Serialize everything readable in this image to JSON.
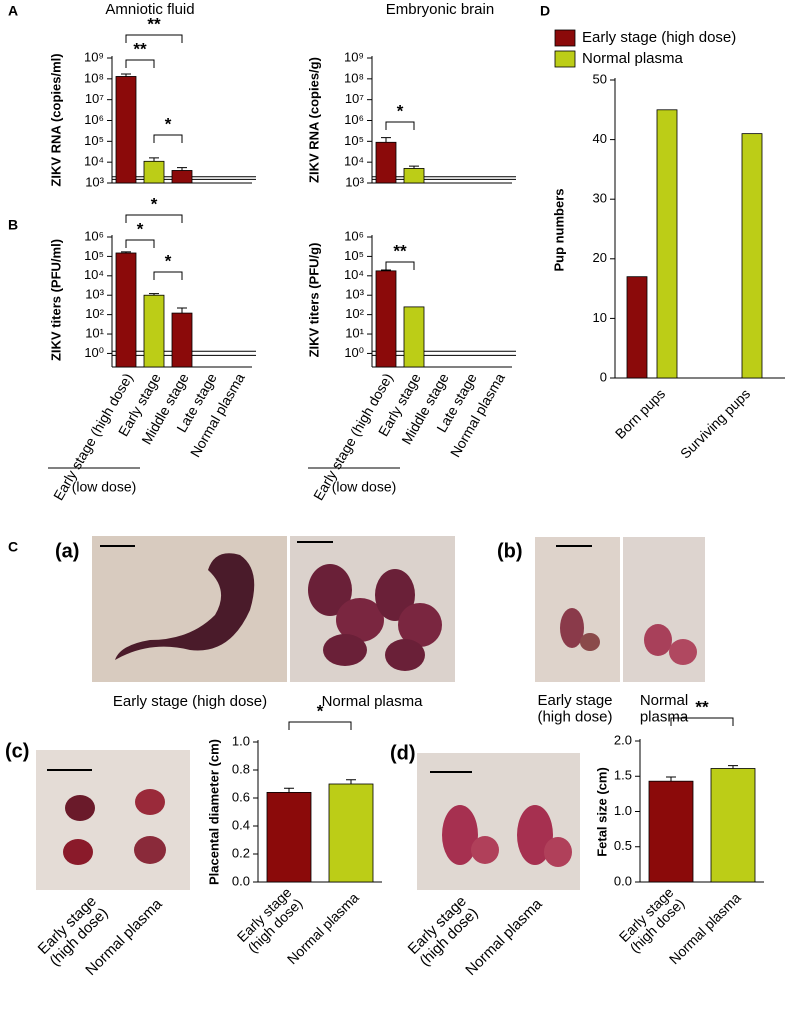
{
  "panel_labels": [
    "A",
    "B",
    "C",
    "D"
  ],
  "chart_data": [
    {
      "type": "bar",
      "title": "Amniotic fluid",
      "y_label": "ZIKV RNA (copies/ml)",
      "log_scale": true,
      "categories": [
        null,
        null,
        null,
        null,
        null
      ],
      "values": [
        130000000,
        11000,
        4000,
        null,
        null
      ],
      "errors": [
        40000000,
        5000,
        1500,
        null,
        null
      ],
      "colors": [
        "#8b0a0a",
        "#bccd17",
        "#8b0a0a",
        null,
        null
      ],
      "ylim": [
        1000,
        1000000000
      ],
      "yticks": [
        {
          "value": 1000,
          "label": "10³"
        },
        {
          "value": 10000,
          "label": "10⁴"
        },
        {
          "value": 100000,
          "label": "10⁵"
        },
        {
          "value": 1000000,
          "label": "10⁶"
        },
        {
          "value": 10000000,
          "label": "10⁷"
        },
        {
          "value": 100000000,
          "label": "10⁸"
        },
        {
          "value": 1000000000,
          "label": "10⁹"
        }
      ],
      "reference_lines": [
        1500,
        2000
      ],
      "significance": [
        {
          "label": "**",
          "pair": [
            0,
            2
          ]
        },
        {
          "label": "**",
          "pair": [
            0,
            1
          ]
        },
        {
          "label": "*",
          "pair": [
            1,
            2
          ]
        }
      ]
    },
    {
      "type": "bar",
      "title": "Embryonic brain",
      "y_label": "ZIKV RNA (copies/g)",
      "log_scale": true,
      "categories": [
        null,
        null,
        null,
        null,
        null
      ],
      "values": [
        90000,
        5000,
        null,
        null,
        null
      ],
      "errors": [
        60000,
        1500,
        null,
        null,
        null
      ],
      "colors": [
        "#8b0a0a",
        "#bccd17",
        null,
        null,
        null
      ],
      "ylim": [
        1000,
        1000000000
      ],
      "yticks": [
        {
          "value": 1000,
          "label": "10³"
        },
        {
          "value": 10000,
          "label": "10⁴"
        },
        {
          "value": 100000,
          "label": "10⁵"
        },
        {
          "value": 1000000,
          "label": "10⁶"
        },
        {
          "value": 10000000,
          "label": "10⁷"
        },
        {
          "value": 100000000,
          "label": "10⁸"
        },
        {
          "value": 1000000000,
          "label": "10⁹"
        }
      ],
      "reference_lines": [
        1500,
        2000
      ],
      "significance": [
        {
          "label": "*",
          "pair": [
            0,
            1
          ]
        }
      ]
    },
    {
      "type": "bar",
      "y_label": "ZIKV titers (PFU/ml)",
      "log_scale": true,
      "categories": [
        "Early stage (high dose)",
        "Early stage",
        "Middle stage",
        "Late stage",
        "Normal plasma"
      ],
      "group_label": "(low dose)",
      "values": [
        150000,
        1000,
        120,
        null,
        null
      ],
      "errors": [
        20000,
        200,
        100,
        null,
        null
      ],
      "colors": [
        "#8b0a0a",
        "#bccd17",
        "#8b0a0a",
        null,
        null
      ],
      "ylim": [
        0.2,
        1000000
      ],
      "yticks": [
        {
          "value": 1,
          "label": "10⁰"
        },
        {
          "value": 10,
          "label": "10¹"
        },
        {
          "value": 100,
          "label": "10²"
        },
        {
          "value": 1000,
          "label": "10³"
        },
        {
          "value": 10000,
          "label": "10⁴"
        },
        {
          "value": 100000,
          "label": "10⁵"
        },
        {
          "value": 1000000,
          "label": "10⁶"
        }
      ],
      "reference_lines": [
        0.8,
        1.3
      ],
      "significance": [
        {
          "label": "*",
          "pair": [
            0,
            2
          ]
        },
        {
          "label": "*",
          "pair": [
            0,
            1
          ]
        },
        {
          "label": "*",
          "pair": [
            1,
            2
          ]
        }
      ]
    },
    {
      "type": "bar",
      "y_label": "ZIKV titers (PFU/g)",
      "log_scale": true,
      "categories": [
        "Early stage (high dose)",
        "Early stage",
        "Middle stage",
        "Late stage",
        "Normal plasma"
      ],
      "group_label": "(low dose)",
      "values": [
        18000,
        250,
        null,
        null,
        null
      ],
      "errors": [
        2000,
        null,
        null,
        null,
        null
      ],
      "colors": [
        "#8b0a0a",
        "#bccd17",
        null,
        null,
        null
      ],
      "ylim": [
        0.2,
        1000000
      ],
      "yticks": [
        {
          "value": 1,
          "label": "10⁰"
        },
        {
          "value": 10,
          "label": "10¹"
        },
        {
          "value": 100,
          "label": "10²"
        },
        {
          "value": 1000,
          "label": "10³"
        },
        {
          "value": 10000,
          "label": "10⁴"
        },
        {
          "value": 100000,
          "label": "10⁵"
        },
        {
          "value": 1000000,
          "label": "10⁶"
        }
      ],
      "reference_lines": [
        0.8,
        1.3
      ],
      "significance": [
        {
          "label": "**",
          "pair": [
            0,
            1
          ]
        }
      ]
    },
    {
      "type": "grouped_bar",
      "y_label": "Pup numbers",
      "legend": "top-left",
      "categories": [
        "Born pups",
        "Surviving pups"
      ],
      "series": [
        {
          "name": "Early stage (high dose)",
          "color": "#8b0a0a",
          "values": [
            17,
            0
          ]
        },
        {
          "name": "Normal plasma",
          "color": "#bccd17",
          "values": [
            45,
            41
          ]
        }
      ],
      "ylim": [
        0,
        50
      ],
      "yticks": [
        0,
        10,
        20,
        30,
        40,
        50
      ]
    },
    {
      "type": "bar",
      "y_label": "Placental diameter (cm)",
      "categories": [
        "Early stage\n(high dose)",
        "Normal plasma"
      ],
      "values": [
        0.64,
        0.7
      ],
      "errors": [
        0.03,
        0.03
      ],
      "colors": [
        "#8b0a0a",
        "#bccd17"
      ],
      "ylim": [
        0,
        1
      ],
      "yticks": [
        {
          "value": 0,
          "label": "0.0"
        },
        0.2,
        0.4,
        0.6,
        0.8,
        {
          "value": 1,
          "label": "1.0"
        }
      ],
      "significance": [
        {
          "label": "*",
          "pair": [
            0,
            1
          ]
        }
      ]
    },
    {
      "type": "bar",
      "y_label": "Fetal size (cm)",
      "categories": [
        "Early stage\n(high dose)",
        "Normal plasma"
      ],
      "values": [
        1.43,
        1.61
      ],
      "errors": [
        0.06,
        0.04
      ],
      "colors": [
        "#8b0a0a",
        "#bccd17"
      ],
      "ylim": [
        0,
        2
      ],
      "yticks": [
        {
          "value": 0,
          "label": "0.0"
        },
        0.5,
        {
          "value": 1,
          "label": "1.0"
        },
        1.5,
        {
          "value": 2,
          "label": "2.0"
        }
      ],
      "significance": [
        {
          "label": "**",
          "pair": [
            0,
            1
          ]
        }
      ]
    }
  ],
  "photos": [
    {
      "label": "(a)",
      "captions": [
        "Early stage (high dose)",
        "Normal plasma"
      ]
    },
    {
      "label": "(b)",
      "captions": [
        "Early stage\n(high dose)",
        "Normal\nplasma"
      ]
    },
    {
      "label": "(c)",
      "captions": [
        "Early stage\n(high dose)",
        "Normal plasma"
      ]
    },
    {
      "label": "(d)",
      "captions": [
        "Early stage\n(high dose)",
        "Normal plasma"
      ]
    }
  ]
}
